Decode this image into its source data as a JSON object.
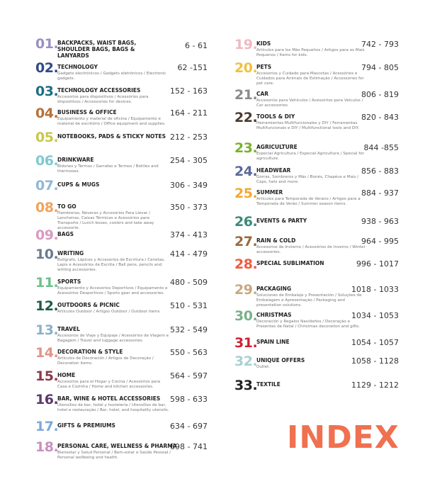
{
  "heading": "INDEX",
  "entries": [
    {
      "number": "01.",
      "title": "BACKPACKS, WAIST BAGS, SHOULDER BAGS, BAGS & LANYARDS",
      "pages": "6 - 61",
      "color": "#9b8fc4"
    },
    {
      "number": "02.",
      "title": "TECHNOLOGY",
      "description": "Gadgets electrónicos / Gadgets eletrónicos / Electronic gadgets.",
      "pages": "62 -151",
      "color": "#2e4a8a"
    },
    {
      "number": "03.",
      "title": "TECHNOLOGY ACCESSORIES",
      "description": "Accesorios para dispositivos / Acessórios para dispositivos / Accessories for devices.",
      "pages": "152 - 163",
      "color": "#1d6f80"
    },
    {
      "number": "04.",
      "title": "BUSINESS & OFFICE",
      "description": "Equipamiento y material de oficina / Equipamento e material de escritório / Office equipment and supplies.",
      "pages": "164 - 211",
      "color": "#b5713a"
    },
    {
      "number": "05.",
      "title": "NOTEBOOKS, PADS & STICKY NOTES",
      "pages": "212 - 253",
      "color": "#c7c84a"
    },
    {
      "number": "06.",
      "title": "DRINKWARE",
      "description": "Bidones y Termos / Garrafas e Termos / Bottles and thermoses.",
      "pages": "254 - 305",
      "color": "#7fc9d2"
    },
    {
      "number": "07.",
      "title": "CUPS & MUGS",
      "pages": "306 - 349",
      "color": "#8fb8d8"
    },
    {
      "number": "08.",
      "title": "TO GO",
      "description": "Fiambreras, Neveras y Accesorios Para Llevar / Lancheiras, Caixas Térmicas e Acessórios para Transporte / Lunch boxes, coolers and take away accessorie.",
      "pages": "350 - 373",
      "color": "#f0a35a"
    },
    {
      "number": "09.",
      "title": "BAGS",
      "pages": "374 - 413",
      "color": "#d99ac0"
    },
    {
      "number": "10.",
      "title": "WRITING",
      "description": "Bolígrafo, Lápices y Accesorios de Escritura / Canetas, Lapis e Acessórios de Escrita / Ball pens, pencils and writing accessories.",
      "pages": "414 - 479",
      "color": "#6b7a8f"
    },
    {
      "number": "11.",
      "title": "SPORTS",
      "description": "Equipamiento y Accesorios Deportivos / Equipamento e Acessórios Desportivos / Sports gear and accessories.",
      "pages": "480 - 509",
      "color": "#6cc08a"
    },
    {
      "number": "12.",
      "title": "OUTDOORS & PICNIC",
      "description": "Artículos Outdoor / Artigos Outdoor / Outdoor items",
      "pages": "510 - 531",
      "color": "#1f5a4a"
    },
    {
      "number": "13.",
      "title": "TRAVEL",
      "description": "Accesorios de Viaje y Equipaje / Acessórios de Viagem e Bagagem / Travel and luggage accessories.",
      "pages": "532 - 549",
      "color": "#8ab0c8"
    },
    {
      "number": "14.",
      "title": "DECORATION & STYLE",
      "description": "Artículos de Decoración / Artigos de Decoração / Decoration items.",
      "pages": "550 - 563",
      "color": "#e0948a"
    },
    {
      "number": "15.",
      "title": "HOME",
      "description": "Accesorios para el Hogar y Cocina / Acessórios para Casa e Cozinha / Home and kitchen accessories.",
      "pages": "564 - 597",
      "color": "#8a3a4a"
    },
    {
      "number": "16.",
      "title": "BAR, WINE & HOTEL ACCESSORIES",
      "description": "Utensilios de bar, hotel y hostelería / Utensílios de bar, hotel e restauração / Bar, hotel, and hospitality utensils.",
      "pages": "598 - 633",
      "color": "#5a3a6a"
    },
    {
      "number": "17.",
      "title": "GIFTS & PREMIUMS",
      "pages": "634 - 697",
      "color": "#7fa8d8"
    },
    {
      "number": "18.",
      "title": "PERSONAL CARE, WELLNESS & PHARMA",
      "description": "Bienestar y Salud Personal / Bem-estar e Saúde Pessoal / Personal wellbeing and health.",
      "pages": "698 - 741",
      "color": "#c890c0"
    },
    {
      "number": "19.",
      "title": "KIDS",
      "description": "Artículos para los Más Pequeños / Artigos para os Mais Pequenos / Items for kids.",
      "pages": "742 - 793",
      "color": "#f0b8c0"
    },
    {
      "number": "20.",
      "title": "PETS",
      "description": "Accesorios y Cuidado para Mascotas / Acessórios e Cuidados para Animais de Estimação / Accessories for pet care.",
      "pages": "794 - 805",
      "color": "#f0c040"
    },
    {
      "number": "21.",
      "title": "CAR",
      "description": "Accesorios para Vehículos / Acessórios para Veículos / Car accessories.",
      "pages": "806 - 819",
      "color": "#8a8a8a"
    },
    {
      "number": "22.",
      "title": "TOOLS & DIY",
      "description": "Herramientas Multifuncionales y DIY / Ferramentas Multifuncionais e DIY / Multifunctional tools and DIY.",
      "pages": "820 - 843",
      "color": "#4a3a30"
    },
    {
      "number": "23.",
      "title": "AGRICULTURE",
      "description": "Especial Agricultura / Especial Agricultura / Special for agriculture.",
      "pages": "844 -855",
      "color": "#7ab030"
    },
    {
      "number": "24.",
      "title": "HEADWEAR",
      "description": "Gorras, Sombreros y Más / Bonés, Chapéus e Mais / Caps, hats and more.",
      "pages": "856 - 883",
      "color": "#5a6a9a"
    },
    {
      "number": "25.",
      "title": "SUMMER",
      "description": "Artículos para Temporada de Verano / Artigos para a Temporada de Verão / Summer season items.",
      "pages": "884 - 937",
      "color": "#f5a830"
    },
    {
      "number": "26.",
      "title": "EVENTS & PARTY",
      "pages": "938 - 963",
      "color": "#3a8a7a"
    },
    {
      "number": "27.",
      "title": "RAIN & COLD",
      "description": "Accesorios de Invierno / Acessórios de Inverno / Winter accessories.",
      "pages": "964 - 995",
      "color": "#9a6a40"
    },
    {
      "number": "28.",
      "title": "SPECIAL SUBLIMATION",
      "pages": "996 - 1017",
      "color": "#f05a40"
    },
    {
      "number": "29.",
      "title": "PACKAGING",
      "description": "Soluciones de Embalaje y Presentación / Soluções de Embalagem e Apresentação / Packaging and presentation solutions.",
      "pages": "1018 - 1033",
      "color": "#c8a880"
    },
    {
      "number": "30.",
      "title": "CHRISTMAS",
      "description": "Decoración y Regalos Navideños / Decoração e Presentes de Natal / Christmas decoration and gifts.",
      "pages": "1034 - 1053",
      "color": "#7ab08a"
    },
    {
      "number": "31.",
      "title": "SPAIN LINE",
      "pages": "1054 - 1057",
      "color": "#d02030"
    },
    {
      "number": "32.",
      "title": "UNIQUE OFFERS",
      "description": "Outlet.",
      "pages": "1058 - 1128",
      "color": "#a8d0d0"
    },
    {
      "number": "33.",
      "title": "TEXTILE",
      "pages": "1129 - 1212",
      "color": "#222222"
    }
  ]
}
